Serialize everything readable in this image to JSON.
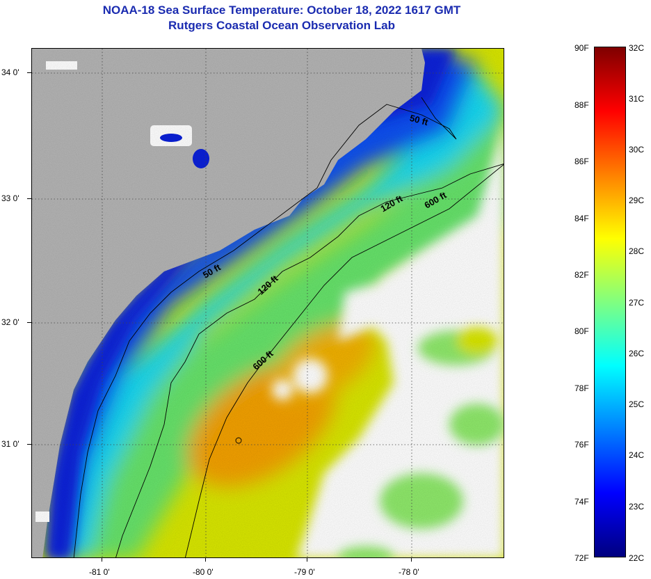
{
  "title": {
    "line1": "NOAA-18 Sea Surface Temperature:  October 18, 2022 1617 GMT",
    "line2": "Rutgers Coastal Ocean Observation Lab"
  },
  "map": {
    "lat_labels": [
      "34 0'",
      "33 0'",
      "32 0'",
      "31 0'"
    ],
    "lon_labels": [
      "-81 0'",
      "-80 0'",
      "-79 0'",
      "-78 0'"
    ],
    "contours": [
      "50 ft",
      "120 ft",
      "600 ft",
      "50 ft",
      "120 ft",
      "600 ft"
    ],
    "colors": {
      "land": "#b4b4b4",
      "cloud": "#ffffff",
      "coastal_cold": "#0b1fd6",
      "mid": "#00d4ff",
      "warm": "#f2a000"
    }
  },
  "colorbar": {
    "fahrenheit": [
      "90F",
      "88F",
      "86F",
      "84F",
      "82F",
      "80F",
      "78F",
      "76F",
      "74F",
      "72F"
    ],
    "celsius": [
      "32C",
      "31C",
      "30C",
      "29C",
      "28C",
      "27C",
      "26C",
      "25C",
      "24C",
      "23C",
      "22C"
    ]
  }
}
